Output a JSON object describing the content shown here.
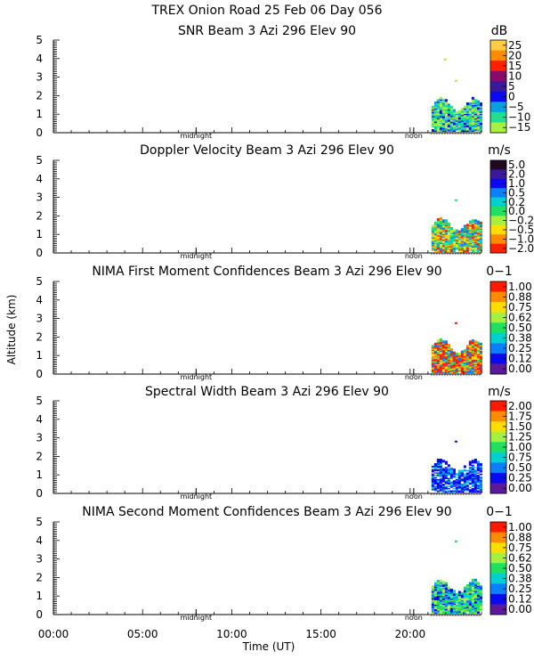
{
  "header": {
    "line1": "TREX Onion Road  25 Feb 06 Day 056"
  },
  "y_axis_label": "Altitude (km)",
  "x_axis_label": "Time (UT)",
  "x_ticks": [
    "00:00",
    "05:00",
    "10:00",
    "15:00",
    "20:00"
  ],
  "markers": {
    "midnight": "midnight",
    "noon": "noon"
  },
  "chart_data": [
    {
      "type": "heatmap",
      "title": "SNR Beam 3 Azi 296 Elev 90",
      "unit": "dB",
      "ylim": [
        0,
        5
      ],
      "y_ticks": [
        "0",
        "1",
        "2",
        "3",
        "4",
        "5"
      ],
      "colorbar": {
        "labels": [
          "25",
          "20",
          "15",
          "10",
          "5",
          "0",
          "−5",
          "−10",
          "−15"
        ],
        "colors": [
          "#ffcc44",
          "#ff8c00",
          "#ff2000",
          "#8a0a6a",
          "#3a1a9a",
          "#0a0af0",
          "#0aa0e0",
          "#20e090",
          "#a8f040"
        ]
      },
      "data_window_ut": [
        21.2,
        23.9
      ]
    },
    {
      "type": "heatmap",
      "title": "Doppler Velocity Beam 3 Azi 296 Elev 90",
      "unit": "m/s",
      "ylim": [
        0,
        5
      ],
      "y_ticks": [
        "0",
        "1",
        "2",
        "3",
        "4",
        "5"
      ],
      "colorbar": {
        "labels": [
          "5.0",
          "2.0",
          "1.0",
          "0.5",
          "0.2",
          "0.0",
          "−0.2",
          "−0.5",
          "−1.0",
          "−2.0"
        ],
        "colors": [
          "#200a20",
          "#3a1a9a",
          "#0a0af0",
          "#0a80ff",
          "#00d0d0",
          "#20e060",
          "#a8f040",
          "#ffdd00",
          "#ff8c00",
          "#ff2000"
        ]
      },
      "data_window_ut": [
        21.2,
        23.9
      ]
    },
    {
      "type": "heatmap",
      "title": "NIMA First Moment Confidences Beam 3 Azi 296 Elev 90",
      "unit": "0−1",
      "ylim": [
        0,
        5
      ],
      "y_ticks": [
        "0",
        "1",
        "2",
        "3",
        "4",
        "5"
      ],
      "colorbar": {
        "labels": [
          "1.00",
          "0.88",
          "0.75",
          "0.62",
          "0.50",
          "0.38",
          "0.25",
          "0.12",
          "0.00"
        ],
        "colors": [
          "#ff1a00",
          "#ff8c00",
          "#ffdd00",
          "#a8f040",
          "#20e060",
          "#00d0d0",
          "#0a80ff",
          "#0a0af0",
          "#5a1a9a"
        ]
      },
      "data_window_ut": [
        21.2,
        23.9
      ]
    },
    {
      "type": "heatmap",
      "title": "Spectral Width Beam 3 Azi 296 Elev 90",
      "unit": "m/s",
      "ylim": [
        0,
        5
      ],
      "y_ticks": [
        "0",
        "1",
        "2",
        "3",
        "4",
        "5"
      ],
      "colorbar": {
        "labels": [
          "2.00",
          "1.75",
          "1.50",
          "1.25",
          "1.00",
          "0.75",
          "0.50",
          "0.25",
          "0.00"
        ],
        "colors": [
          "#ff1a00",
          "#ff8c00",
          "#ffdd00",
          "#a8f040",
          "#20e060",
          "#00d0d0",
          "#0a80ff",
          "#0a0af0",
          "#5a1a9a"
        ]
      },
      "data_window_ut": [
        21.2,
        23.9
      ]
    },
    {
      "type": "heatmap",
      "title": "NIMA Second Moment Confidences Beam 3 Azi 296 Elev 90",
      "unit": "0−1",
      "ylim": [
        0,
        5
      ],
      "y_ticks": [
        "0",
        "1",
        "2",
        "3",
        "4",
        "5"
      ],
      "colorbar": {
        "labels": [
          "1.00",
          "0.88",
          "0.75",
          "0.62",
          "0.50",
          "0.38",
          "0.25",
          "0.12",
          "0.00"
        ],
        "colors": [
          "#ff1a00",
          "#ff8c00",
          "#ffdd00",
          "#a8f040",
          "#20e060",
          "#00d0d0",
          "#0a80ff",
          "#0a0af0",
          "#5a1a9a"
        ]
      },
      "data_window_ut": [
        21.2,
        23.9
      ]
    }
  ]
}
